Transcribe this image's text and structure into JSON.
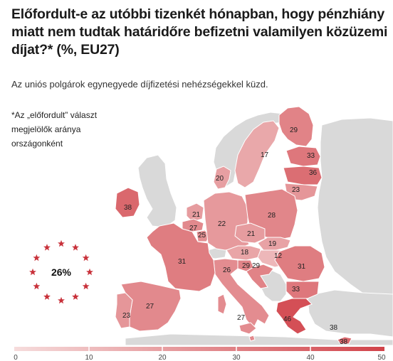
{
  "title": "Előfordult-e az utóbbi tizenkét hónapban, hogy pénzhiány miatt nem tudtak határidőre befizetni valamilyen közüzemi díjat?* (%, EU27)",
  "subtitle": "Az uniós polgárok egynegyede díjfizetési nehézségekkel küzd.",
  "note_lines": [
    "*Az „előfordult” választ",
    "megjelölők aránya",
    "országonként"
  ],
  "eu_average": "26%",
  "colors": {
    "non_eu": "#d9d9d9",
    "sea": "#ffffff",
    "scale_low": "#f6dcdc",
    "scale_high": "#d1434a",
    "eu_stars": "#c8313a",
    "border": "#ffffff"
  },
  "legend": {
    "ticks": [
      "0",
      "10",
      "20",
      "30",
      "40",
      "50"
    ],
    "min": 0,
    "max": 50
  },
  "countries": [
    {
      "name": "FI",
      "value": 29
    },
    {
      "name": "SE",
      "value": 17
    },
    {
      "name": "EE",
      "value": 33
    },
    {
      "name": "LV",
      "value": 36
    },
    {
      "name": "LT",
      "value": 23
    },
    {
      "name": "DK",
      "value": 20
    },
    {
      "name": "IE",
      "value": 38
    },
    {
      "name": "NL",
      "value": 21
    },
    {
      "name": "BE",
      "value": 27
    },
    {
      "name": "LU",
      "value": 25
    },
    {
      "name": "DE",
      "value": 22
    },
    {
      "name": "PL",
      "value": 28
    },
    {
      "name": "CZ",
      "value": 21
    },
    {
      "name": "SK",
      "value": 19
    },
    {
      "name": "AT",
      "value": 18
    },
    {
      "name": "HU",
      "value": 12
    },
    {
      "name": "SI",
      "value": 29
    },
    {
      "name": "HR",
      "value": 29
    },
    {
      "name": "IT",
      "value": 26
    },
    {
      "name": "FR",
      "value": 31
    },
    {
      "name": "ES",
      "value": 27
    },
    {
      "name": "PT",
      "value": 23
    },
    {
      "name": "RO",
      "value": 31
    },
    {
      "name": "BG",
      "value": 33
    },
    {
      "name": "GR",
      "value": 46
    },
    {
      "name": "MT",
      "value": 27
    },
    {
      "name": "CY",
      "value": 38
    }
  ]
}
